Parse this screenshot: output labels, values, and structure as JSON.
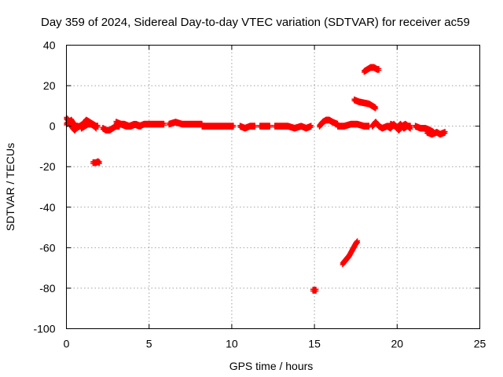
{
  "chart_data": {
    "type": "scatter",
    "title": "Day 359 of 2024, Sidereal Day-to-day VTEC variation (SDTVAR) for receiver ac59",
    "xlabel": "GPS time / hours",
    "ylabel": "SDTVAR / TECUs",
    "xlim": [
      0,
      25
    ],
    "ylim": [
      -100,
      40
    ],
    "xticks": [
      0,
      5,
      10,
      15,
      20,
      25
    ],
    "yticks": [
      -100,
      -80,
      -60,
      -40,
      -20,
      0,
      20,
      40
    ],
    "grid": true,
    "marker": "plus",
    "color": "#ff0000",
    "series": [
      {
        "name": "SDTVAR",
        "segments": [
          {
            "x0": 0.0,
            "x1": 0.6,
            "points": [
              [
                0.0,
                4
              ],
              [
                0.1,
                3
              ],
              [
                0.2,
                2
              ],
              [
                0.3,
                0
              ],
              [
                0.4,
                -1
              ],
              [
                0.5,
                -2
              ],
              [
                0.6,
                -1
              ]
            ]
          },
          {
            "x0": 0.0,
            "x1": 0.7,
            "points": [
              [
                0.0,
                1
              ],
              [
                0.15,
                2
              ],
              [
                0.3,
                3
              ],
              [
                0.45,
                1
              ],
              [
                0.6,
                0
              ],
              [
                0.7,
                0
              ]
            ]
          },
          {
            "x0": 0.6,
            "x1": 1.9,
            "points": [
              [
                0.6,
                -1
              ],
              [
                0.8,
                0
              ],
              [
                1.0,
                1
              ],
              [
                1.2,
                3
              ],
              [
                1.4,
                2
              ],
              [
                1.6,
                1
              ],
              [
                1.8,
                0
              ],
              [
                1.9,
                0
              ]
            ]
          },
          {
            "x0": 0.9,
            "x1": 1.8,
            "points": [
              [
                0.9,
                -1
              ],
              [
                1.1,
                0
              ],
              [
                1.3,
                1
              ],
              [
                1.5,
                1
              ],
              [
                1.7,
                0
              ],
              [
                1.8,
                -1
              ]
            ]
          },
          {
            "x0": 1.6,
            "x1": 2.0,
            "points": [
              [
                1.6,
                -18
              ],
              [
                1.7,
                -18
              ],
              [
                1.8,
                -18
              ],
              [
                1.9,
                -17.5
              ],
              [
                2.0,
                -18
              ]
            ]
          },
          {
            "x0": 2.2,
            "x1": 3.2,
            "points": [
              [
                2.2,
                -1
              ],
              [
                2.4,
                -2
              ],
              [
                2.6,
                -2
              ],
              [
                2.8,
                -1
              ],
              [
                3.0,
                0
              ],
              [
                3.2,
                0
              ]
            ]
          },
          {
            "x0": 3.2,
            "x1": 5.9,
            "points": [
              [
                3.2,
                1
              ],
              [
                3.5,
                1
              ],
              [
                3.8,
                0
              ],
              [
                4.1,
                1
              ],
              [
                4.4,
                0
              ],
              [
                4.7,
                1
              ],
              [
                5.0,
                1
              ],
              [
                5.3,
                1
              ],
              [
                5.6,
                1
              ],
              [
                5.9,
                1
              ]
            ]
          },
          {
            "x0": 3.0,
            "x1": 4.5,
            "points": [
              [
                3.0,
                2
              ],
              [
                3.3,
                1
              ],
              [
                3.6,
                0
              ],
              [
                3.9,
                0
              ],
              [
                4.2,
                1
              ],
              [
                4.5,
                0
              ]
            ]
          },
          {
            "x0": 6.2,
            "x1": 8.2,
            "points": [
              [
                6.2,
                1
              ],
              [
                6.6,
                2
              ],
              [
                7.0,
                1
              ],
              [
                7.4,
                1
              ],
              [
                7.8,
                1
              ],
              [
                8.2,
                1
              ]
            ]
          },
          {
            "x0": 8.2,
            "x1": 10.1,
            "points": [
              [
                8.2,
                0
              ],
              [
                8.6,
                0
              ],
              [
                9.0,
                0
              ],
              [
                9.4,
                0
              ],
              [
                9.8,
                0
              ],
              [
                10.1,
                0
              ]
            ]
          },
          {
            "x0": 10.5,
            "x1": 11.4,
            "points": [
              [
                10.5,
                0
              ],
              [
                10.8,
                -1
              ],
              [
                11.1,
                0
              ],
              [
                11.4,
                0
              ]
            ]
          },
          {
            "x0": 11.7,
            "x1": 12.3,
            "points": [
              [
                11.7,
                0
              ],
              [
                12.0,
                0
              ],
              [
                12.3,
                0
              ]
            ]
          },
          {
            "x0": 12.6,
            "x1": 14.8,
            "points": [
              [
                12.6,
                0
              ],
              [
                13.0,
                0
              ],
              [
                13.4,
                0
              ],
              [
                13.8,
                -1
              ],
              [
                14.2,
                0
              ],
              [
                14.5,
                -1
              ],
              [
                14.8,
                0
              ]
            ]
          },
          {
            "x0": 14.9,
            "x1": 15.1,
            "points": [
              [
                14.9,
                -81
              ],
              [
                15.0,
                -81
              ],
              [
                15.1,
                -81
              ]
            ]
          },
          {
            "x0": 15.3,
            "x1": 16.4,
            "points": [
              [
                15.3,
                0
              ],
              [
                15.5,
                2
              ],
              [
                15.7,
                3
              ],
              [
                15.9,
                3
              ],
              [
                16.1,
                2
              ],
              [
                16.4,
                1
              ]
            ]
          },
          {
            "x0": 16.4,
            "x1": 18.3,
            "points": [
              [
                16.4,
                0
              ],
              [
                16.8,
                0
              ],
              [
                17.2,
                1
              ],
              [
                17.6,
                1
              ],
              [
                18.0,
                0
              ],
              [
                18.3,
                0
              ]
            ]
          },
          {
            "x0": 16.7,
            "x1": 17.6,
            "points": [
              [
                16.7,
                -68
              ],
              [
                16.9,
                -66
              ],
              [
                17.1,
                -64
              ],
              [
                17.3,
                -61
              ],
              [
                17.5,
                -58
              ],
              [
                17.6,
                -57
              ]
            ]
          },
          {
            "x0": 17.4,
            "x1": 18.7,
            "points": [
              [
                17.4,
                13
              ],
              [
                17.7,
                12
              ],
              [
                18.0,
                11.5
              ],
              [
                18.3,
                11
              ],
              [
                18.5,
                10
              ],
              [
                18.7,
                9
              ]
            ]
          },
          {
            "x0": 18.0,
            "x1": 18.9,
            "points": [
              [
                18.0,
                27
              ],
              [
                18.2,
                28
              ],
              [
                18.4,
                29
              ],
              [
                18.6,
                29
              ],
              [
                18.8,
                28
              ],
              [
                18.9,
                28
              ]
            ]
          },
          {
            "x0": 18.5,
            "x1": 19.4,
            "points": [
              [
                18.5,
                0
              ],
              [
                18.7,
                2
              ],
              [
                18.9,
                0
              ],
              [
                19.1,
                -1
              ],
              [
                19.4,
                0
              ]
            ]
          },
          {
            "x0": 19.4,
            "x1": 20.8,
            "points": [
              [
                19.4,
                0
              ],
              [
                19.6,
                -1
              ],
              [
                19.8,
                1
              ],
              [
                20.0,
                -1
              ],
              [
                20.2,
                1
              ],
              [
                20.4,
                -1
              ],
              [
                20.6,
                0
              ],
              [
                20.8,
                0
              ]
            ]
          },
          {
            "x0": 19.6,
            "x1": 20.8,
            "points": [
              [
                19.6,
                1
              ],
              [
                19.9,
                0
              ],
              [
                20.1,
                -2
              ],
              [
                20.3,
                0
              ],
              [
                20.5,
                1
              ],
              [
                20.8,
                -1
              ]
            ]
          },
          {
            "x0": 21.1,
            "x1": 22.2,
            "points": [
              [
                21.1,
                0
              ],
              [
                21.4,
                -1
              ],
              [
                21.7,
                -1
              ],
              [
                22.0,
                -2
              ],
              [
                22.2,
                -3
              ]
            ]
          },
          {
            "x0": 21.8,
            "x1": 22.9,
            "points": [
              [
                21.8,
                -3
              ],
              [
                22.1,
                -4
              ],
              [
                22.4,
                -3
              ],
              [
                22.6,
                -4
              ],
              [
                22.9,
                -3
              ]
            ]
          }
        ]
      }
    ]
  }
}
